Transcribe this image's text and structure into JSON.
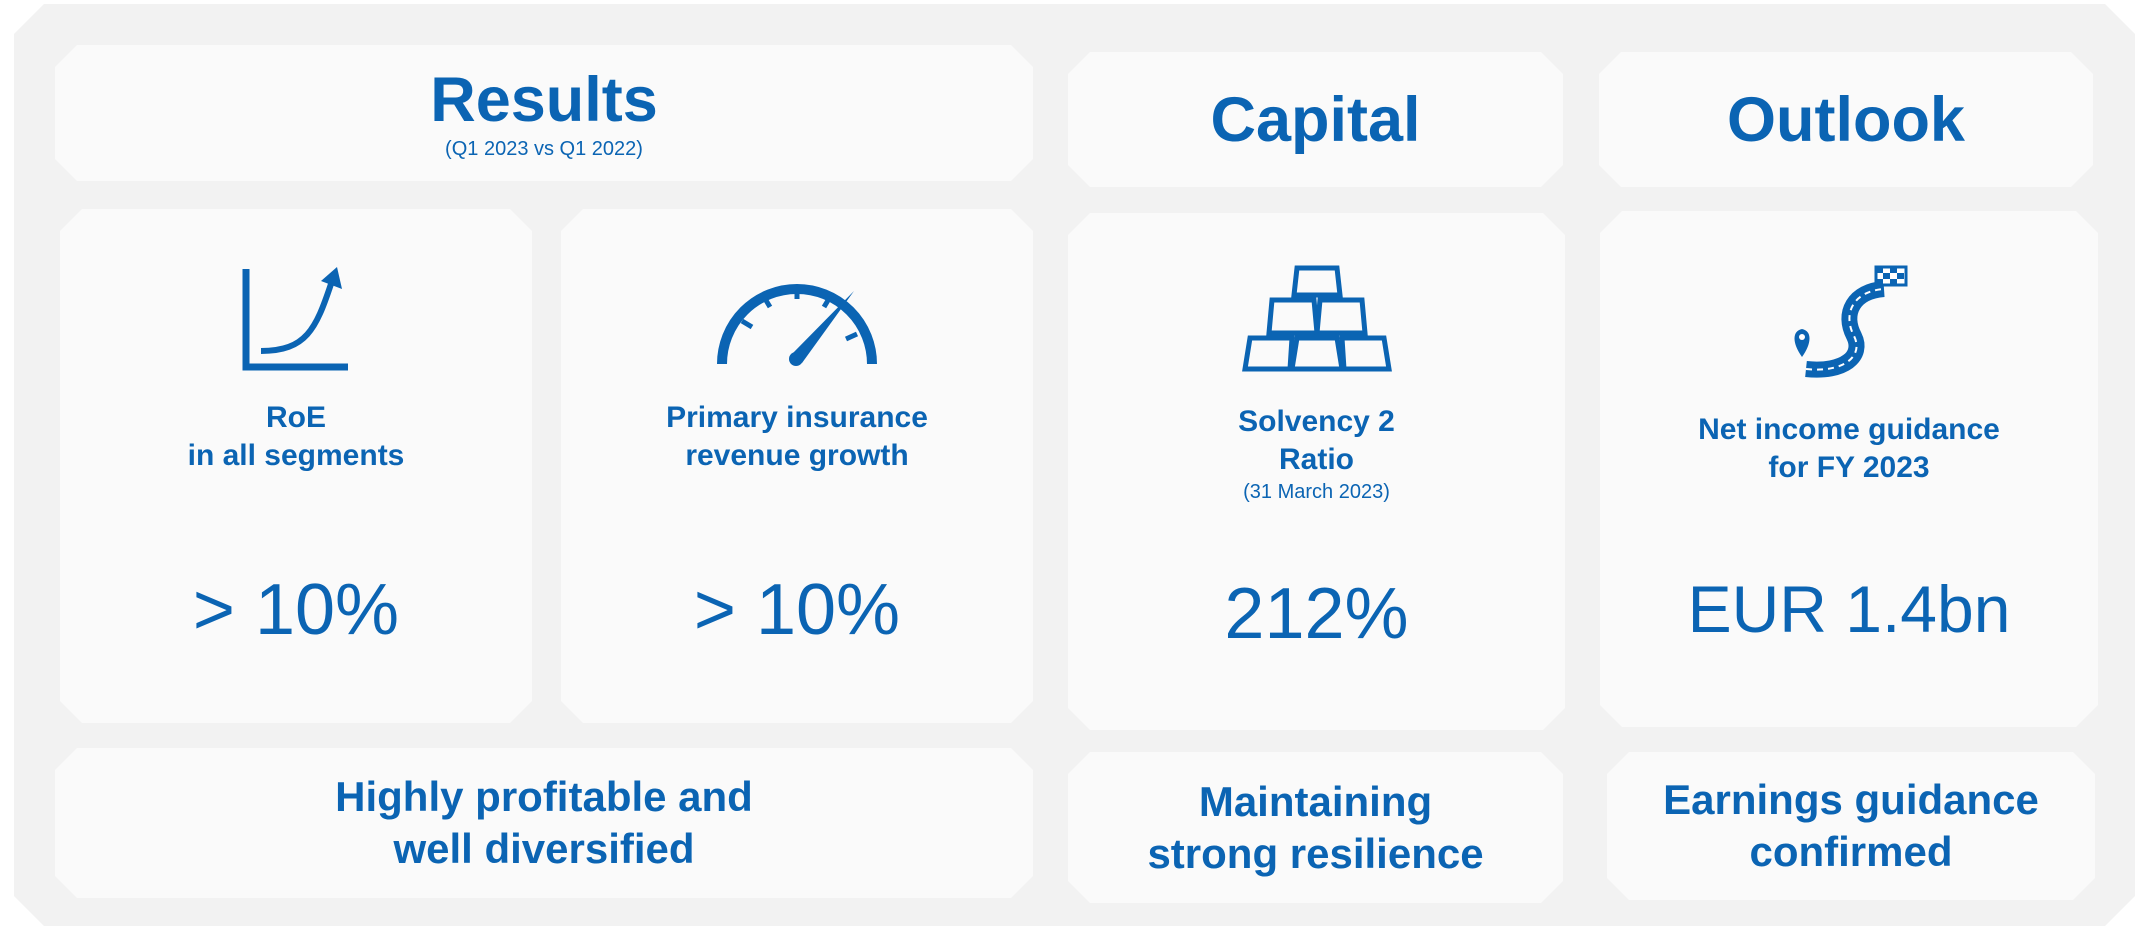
{
  "sections": [
    {
      "title": "Results",
      "subtitle": "(Q1 2023 vs Q1 2022)",
      "cards": [
        {
          "lines": [
            "RoE",
            "in all segments"
          ],
          "value": "> 10%"
        },
        {
          "lines": [
            "Primary insurance",
            "revenue growth"
          ],
          "value": "> 10%"
        }
      ],
      "summary": [
        "Highly profitable and",
        "well diversified"
      ]
    },
    {
      "title": "Capital",
      "cards": [
        {
          "lines": [
            "Solvency 2",
            "Ratio"
          ],
          "note": "(31 March 2023)",
          "value": "212%"
        }
      ],
      "summary": [
        "Maintaining",
        "strong resilience"
      ]
    },
    {
      "title": "Outlook",
      "cards": [
        {
          "lines": [
            "Net income guidance",
            "for FY 2023"
          ],
          "value": "EUR 1.4bn"
        }
      ],
      "summary": [
        "Earnings guidance",
        "confirmed"
      ]
    }
  ]
}
